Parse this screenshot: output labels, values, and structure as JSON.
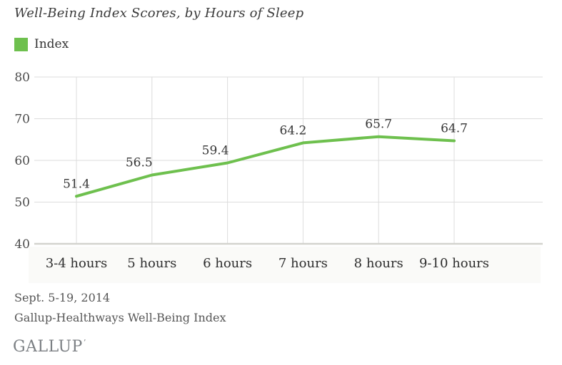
{
  "chart": {
    "title": "Well-Being Index Scores, by Hours of Sleep",
    "legend": [
      {
        "label": "Index",
        "color": "#6ec04e"
      }
    ]
  },
  "chart_data": {
    "type": "line",
    "categories": [
      "3-4 hours",
      "5 hours",
      "6 hours",
      "7 hours",
      "8 hours",
      "9-10 hours"
    ],
    "series": [
      {
        "name": "Index",
        "values": [
          51.4,
          56.5,
          59.4,
          64.2,
          65.7,
          64.7
        ],
        "color": "#6ec04e"
      }
    ],
    "title": "Well-Being Index Scores, by Hours of Sleep",
    "xlabel": "",
    "ylabel": "",
    "ylim": [
      40,
      80
    ],
    "yticks": [
      40,
      50,
      60,
      70,
      80
    ],
    "grid": true,
    "data_labels": true,
    "legend_position": "top-left",
    "colors": {
      "line": "#6ec04e",
      "gridline": "#dcdcdc",
      "axis_line": "#d3d3ce",
      "xband": "#fafaf8",
      "title_text": "#3b3b3b",
      "tick_text": "#4c4c4c"
    }
  },
  "footer": {
    "dates": "Sept. 5-19, 2014",
    "source": "Gallup-Healthways Well-Being Index"
  },
  "logo": {
    "text": "GALLUP",
    "mark": "’"
  }
}
